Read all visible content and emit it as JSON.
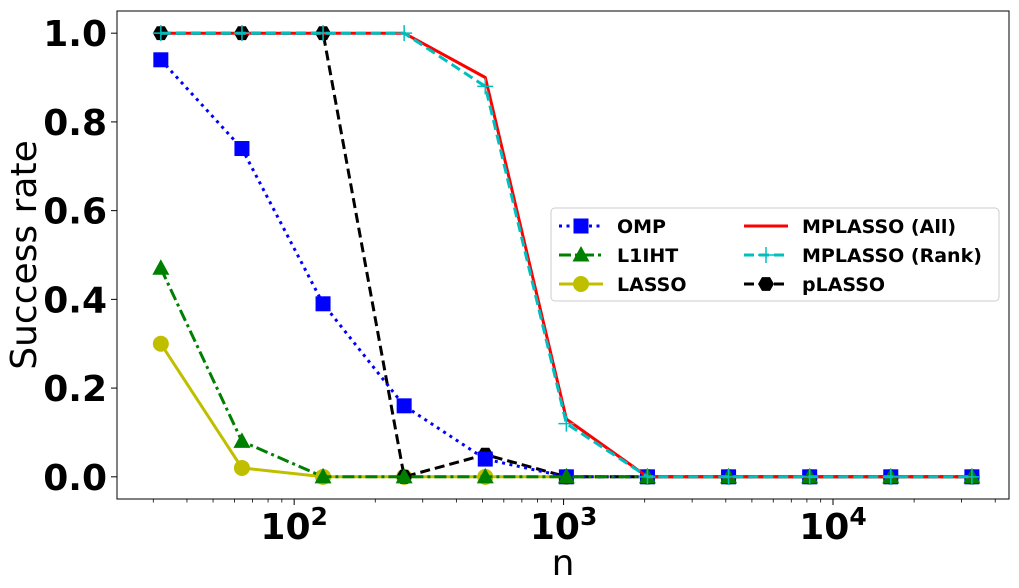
{
  "chart_data": {
    "type": "line",
    "xlabel": "n",
    "ylabel": "Success rate",
    "xscale": "log",
    "xlim": [
      22,
      45000
    ],
    "ylim": [
      -0.05,
      1.05
    ],
    "x_tick_labels": [
      {
        "value": 100,
        "base": "10",
        "exp": "2"
      },
      {
        "value": 1000,
        "base": "10",
        "exp": "3"
      },
      {
        "value": 10000,
        "base": "10",
        "exp": "4"
      }
    ],
    "y_ticks": [
      0.0,
      0.2,
      0.4,
      0.6,
      0.8,
      1.0
    ],
    "y_tick_labels": [
      "0.0",
      "0.2",
      "0.4",
      "0.6",
      "0.8",
      "1.0"
    ],
    "grid": false,
    "legend_position": "center-right",
    "x": [
      32,
      64,
      128,
      256,
      512,
      1024,
      2048,
      4096,
      8192,
      16384,
      32768
    ],
    "series": [
      {
        "name": "LASSO",
        "color": "#bfbf00",
        "dash": "solid",
        "marker": "circle",
        "values": [
          0.3,
          0.02,
          0.0,
          0.0,
          0.0,
          0.0,
          0.0,
          0.0,
          0.0,
          0.0,
          0.0
        ]
      },
      {
        "name": "pLASSO",
        "color": "#000000",
        "dash": "dashed",
        "marker": "hexagon",
        "values": [
          1.0,
          1.0,
          1.0,
          0.0,
          0.05,
          0.0,
          0.0,
          0.0,
          0.0,
          0.0,
          0.0
        ]
      },
      {
        "name": "OMP",
        "color": "#0000ff",
        "dash": "dotted",
        "marker": "square",
        "values": [
          0.94,
          0.74,
          0.39,
          0.16,
          0.04,
          0.0,
          0.0,
          0.0,
          0.0,
          0.0,
          0.0
        ]
      },
      {
        "name": "L1IHT",
        "color": "#008000",
        "dash": "dashdot",
        "marker": "triangle",
        "values": [
          0.47,
          0.08,
          0.0,
          0.0,
          0.0,
          0.0,
          0.0,
          0.0,
          0.0,
          0.0,
          0.0
        ]
      },
      {
        "name": "MPLASSO (All)",
        "color": "#ff0000",
        "dash": "solid",
        "marker": "none",
        "values": [
          1.0,
          1.0,
          1.0,
          1.0,
          0.9,
          0.13,
          0.0,
          0.0,
          0.0,
          0.0,
          0.0
        ]
      },
      {
        "name": "MPLASSO (Rank)",
        "color": "#00bfbf",
        "dash": "dashed",
        "marker": "plus",
        "values": [
          1.0,
          1.0,
          1.0,
          1.0,
          0.88,
          0.12,
          0.0,
          0.0,
          0.0,
          0.0,
          0.0
        ]
      }
    ]
  }
}
